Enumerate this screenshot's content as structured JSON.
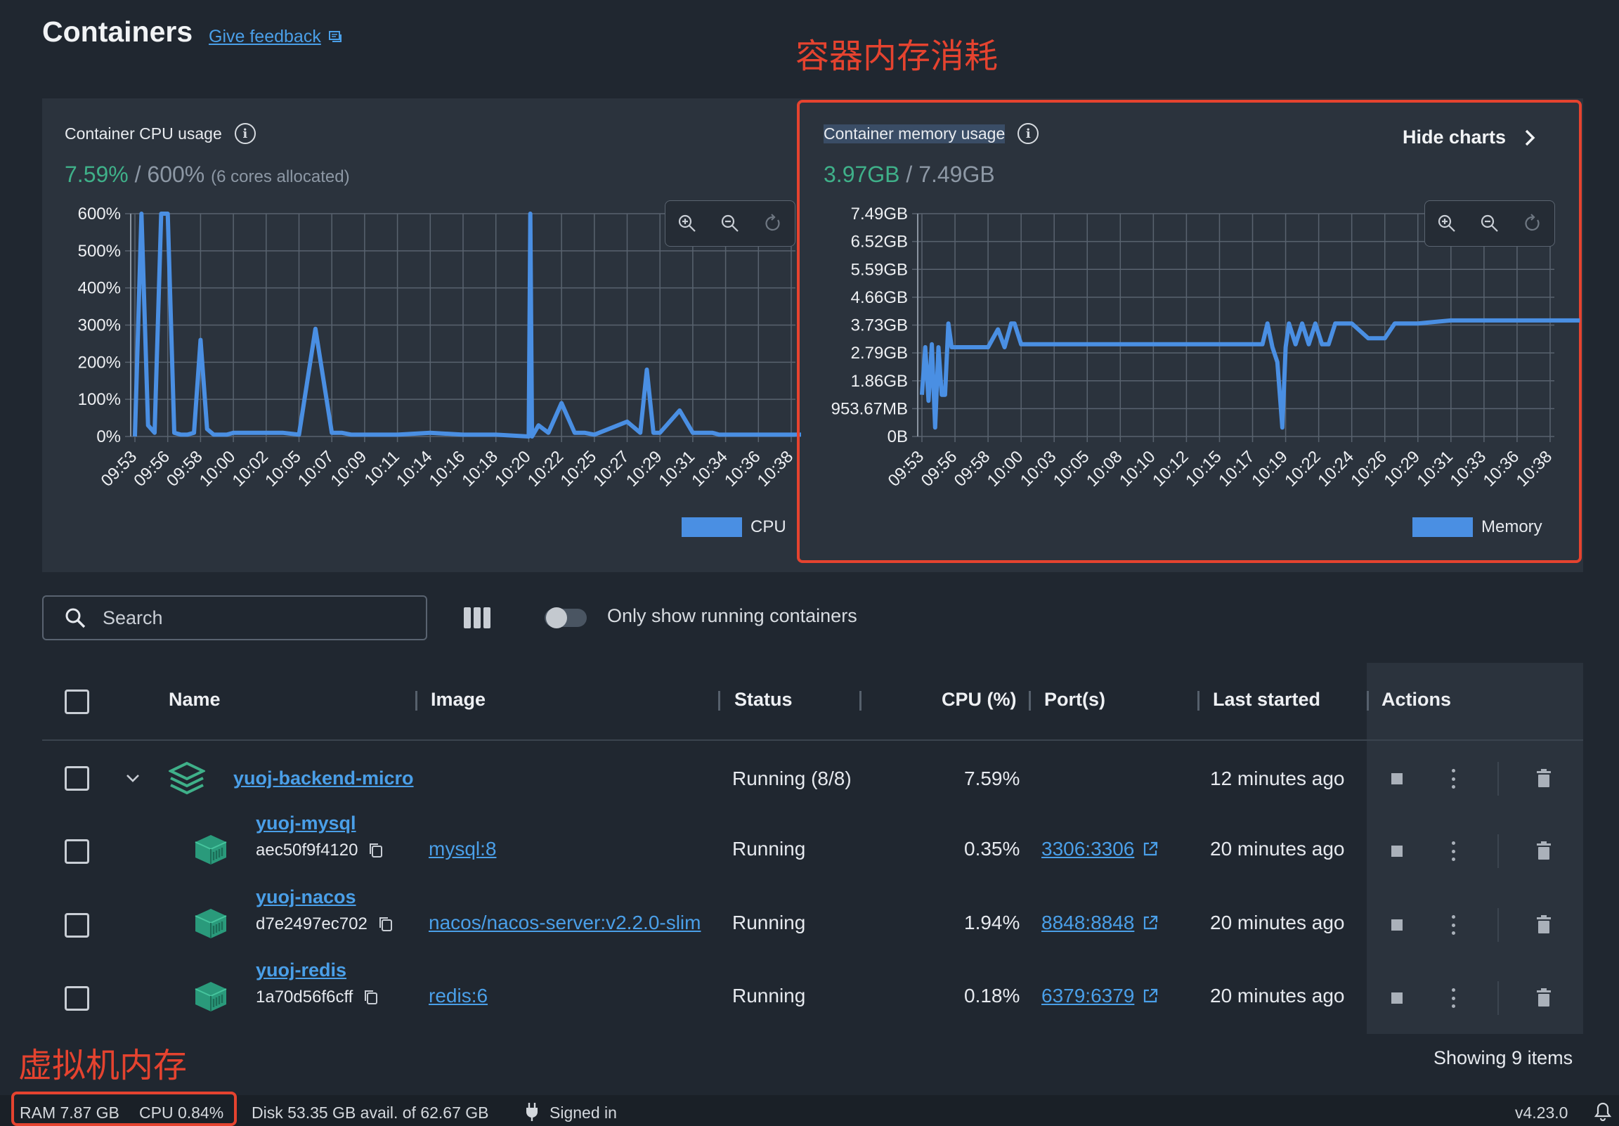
{
  "header": {
    "title": "Containers",
    "feedback_label": "Give feedback"
  },
  "annotations": {
    "memory_note": "容器内存消耗",
    "vm_note": "虚拟机内存"
  },
  "cpu_chart": {
    "title": "Container CPU usage",
    "usage_value": "7.59%",
    "usage_sep": "/",
    "usage_total": "600%",
    "usage_note": "(6 cores allocated)",
    "legend": "CPU"
  },
  "memory_chart": {
    "title": "Container memory usage",
    "usage_value": "3.97GB",
    "usage_sep": "/",
    "usage_total": "7.49GB",
    "legend": "Memory",
    "hide_charts_label": "Hide charts"
  },
  "chart_data": [
    {
      "type": "line",
      "series": [
        {
          "name": "CPU",
          "color": "#4a8fe3"
        }
      ],
      "y_ticks": [
        "600%",
        "500%",
        "400%",
        "300%",
        "200%",
        "100%",
        "0%"
      ],
      "ylim": [
        0,
        600
      ],
      "x_ticks": [
        "09:53",
        "09:56",
        "09:58",
        "10:00",
        "10:02",
        "10:05",
        "10:07",
        "10:09",
        "10:11",
        "10:14",
        "10:16",
        "10:18",
        "10:20",
        "10:22",
        "10:25",
        "10:27",
        "10:29",
        "10:31",
        "10:34",
        "10:36",
        "10:38"
      ],
      "x": [
        0,
        0.2,
        0.4,
        0.6,
        0.8,
        1,
        1.2,
        1.4,
        1.6,
        1.8,
        2,
        2.2,
        2.4,
        2.6,
        2.8,
        3,
        3.5,
        4,
        4.5,
        5,
        5.5,
        6,
        6.3,
        6.6,
        7,
        8,
        9,
        10,
        11,
        12,
        12.05,
        12.1,
        12.3,
        12.6,
        13,
        13.4,
        13.7,
        14,
        15,
        15.4,
        15.6,
        15.8,
        16,
        16.6,
        17,
        17.4,
        17.6,
        17.8,
        18,
        18.5,
        19,
        20,
        21
      ],
      "values": [
        0,
        600,
        30,
        10,
        600,
        600,
        10,
        5,
        5,
        10,
        260,
        20,
        5,
        5,
        5,
        10,
        10,
        10,
        10,
        5,
        290,
        10,
        10,
        5,
        5,
        5,
        10,
        5,
        5,
        0,
        600,
        0,
        30,
        10,
        90,
        10,
        10,
        5,
        40,
        10,
        180,
        10,
        10,
        70,
        10,
        10,
        10,
        5,
        5,
        5,
        5,
        5,
        5
      ],
      "grid": true
    },
    {
      "type": "line",
      "series": [
        {
          "name": "Memory",
          "color": "#4a8fe3"
        }
      ],
      "y_ticks": [
        "7.49GB",
        "6.52GB",
        "5.59GB",
        "4.66GB",
        "3.73GB",
        "2.79GB",
        "1.86GB",
        "953.67MB",
        "0B"
      ],
      "ylim": [
        0,
        7.49
      ],
      "x_ticks": [
        "09:53",
        "09:56",
        "09:58",
        "10:00",
        "10:03",
        "10:05",
        "10:08",
        "10:10",
        "10:12",
        "10:15",
        "10:17",
        "10:19",
        "10:22",
        "10:24",
        "10:26",
        "10:29",
        "10:31",
        "10:33",
        "10:36",
        "10:38"
      ],
      "x": [
        0,
        0.1,
        0.2,
        0.3,
        0.4,
        0.5,
        0.6,
        0.7,
        0.8,
        0.9,
        1,
        1.3,
        1.6,
        2,
        2.3,
        2.5,
        2.7,
        2.8,
        3,
        3.5,
        5,
        7,
        9,
        10.3,
        10.45,
        10.6,
        10.75,
        10.9,
        11,
        11.1,
        11.3,
        11.5,
        11.7,
        11.9,
        12.1,
        12.3,
        12.5,
        12.7,
        13,
        13.5,
        14,
        14.3,
        14.7,
        15,
        16,
        17,
        18,
        19,
        19.9
      ],
      "values": [
        1.4,
        3.0,
        1.2,
        3.1,
        0.3,
        3.0,
        1.4,
        1.4,
        3.8,
        3.0,
        3.0,
        3.0,
        3.0,
        3.0,
        3.6,
        3.0,
        3.8,
        3.8,
        3.1,
        3.1,
        3.1,
        3.1,
        3.1,
        3.1,
        3.8,
        3.0,
        2.5,
        0.3,
        3.0,
        3.8,
        3.1,
        3.8,
        3.1,
        3.8,
        3.1,
        3.1,
        3.8,
        3.8,
        3.8,
        3.3,
        3.3,
        3.8,
        3.8,
        3.8,
        3.9,
        3.9,
        3.9,
        3.9,
        3.9
      ],
      "grid": true
    }
  ],
  "toolbar": {
    "search_placeholder": "Search",
    "toggle_label": "Only show running containers"
  },
  "table": {
    "columns": [
      "Name",
      "Image",
      "Status",
      "CPU (%)",
      "Port(s)",
      "Last started",
      "Actions"
    ],
    "group": {
      "name": "yuoj-backend-micro",
      "status": "Running (8/8)",
      "cpu": "7.59%",
      "last_started": "12 minutes ago"
    },
    "rows": [
      {
        "name": "yuoj-mysql",
        "id": "aec50f9f4120",
        "image": "mysql:8",
        "status": "Running",
        "cpu": "0.35%",
        "port": "3306:3306",
        "last_started": "20 minutes ago"
      },
      {
        "name": "yuoj-nacos",
        "id": "d7e2497ec702",
        "image": "nacos/nacos-server:v2.2.0-slim",
        "status": "Running",
        "cpu": "1.94%",
        "port": "8848:8848",
        "last_started": "20 minutes ago"
      },
      {
        "name": "yuoj-redis",
        "id": "1a70d56f6cff",
        "image": "redis:6",
        "status": "Running",
        "cpu": "0.18%",
        "port": "6379:6379",
        "last_started": "20 minutes ago"
      }
    ],
    "showing": "Showing 9 items"
  },
  "footer": {
    "ram": "RAM 7.87 GB",
    "cpu": "CPU 0.84%",
    "disk": "Disk 53.35 GB avail. of 62.67 GB",
    "signed_in": "Signed in",
    "version": "v4.23.0"
  }
}
